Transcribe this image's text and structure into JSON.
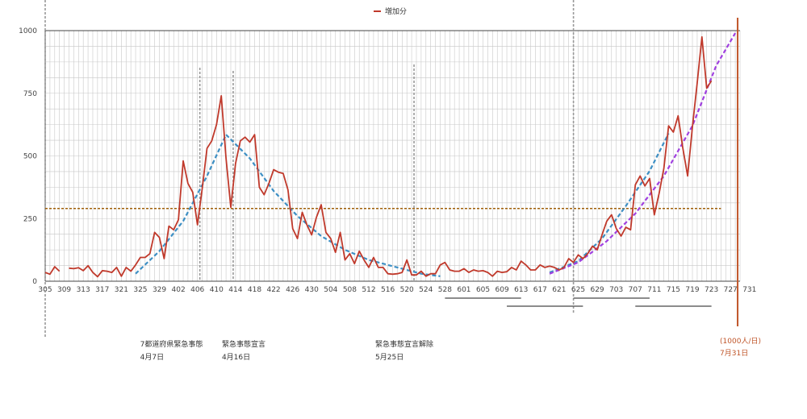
{
  "chart_data": {
    "type": "line",
    "title": "",
    "xlabel": "",
    "ylabel": "",
    "ylim": [
      0,
      1000
    ],
    "yticks": [
      "0",
      "250",
      "500",
      "750",
      "1000"
    ],
    "ytick_values": [
      0,
      250,
      500,
      750,
      1000
    ],
    "xtick_labels": [
      "305",
      "309",
      "313",
      "317",
      "321",
      "325",
      "329",
      "402",
      "406",
      "410",
      "414",
      "418",
      "422",
      "426",
      "430",
      "504",
      "508",
      "512",
      "516",
      "520",
      "524",
      "528",
      "601",
      "605",
      "609",
      "613",
      "617",
      "621",
      "625",
      "629",
      "703",
      "707",
      "711",
      "715",
      "719",
      "723",
      "727",
      "731"
    ],
    "grid": true,
    "legend": {
      "position": "top-center",
      "label": "増加分"
    },
    "colors": {
      "series": "#c0392b",
      "trend_blue": "#3d8fc4",
      "trend_purple": "#a040e0",
      "reference": "#a0600a",
      "event_line": "#999999",
      "target_line": "#c0562a"
    },
    "series": [
      {
        "name": "増加分",
        "segments": [
          [
            [
              0,
              35
            ],
            [
              1,
              28
            ],
            [
              2,
              58
            ],
            [
              3,
              40
            ]
          ],
          [
            [
              5,
              52
            ],
            [
              6,
              50
            ],
            [
              7,
              54
            ],
            [
              8,
              42
            ],
            [
              9,
              62
            ],
            [
              10,
              35
            ],
            [
              11,
              18
            ],
            [
              12,
              42
            ],
            [
              13,
              40
            ],
            [
              14,
              35
            ],
            [
              15,
              55
            ],
            [
              16,
              20
            ],
            [
              17,
              55
            ],
            [
              18,
              40
            ],
            [
              19,
              65
            ],
            [
              20,
              95
            ],
            [
              21,
              95
            ],
            [
              22,
              110
            ],
            [
              23,
              195
            ],
            [
              24,
              175
            ],
            [
              25,
              90
            ],
            [
              26,
              220
            ],
            [
              27,
              205
            ],
            [
              28,
              245
            ],
            [
              29,
              480
            ],
            [
              30,
              390
            ],
            [
              31,
              355
            ],
            [
              32,
              225
            ],
            [
              33,
              370
            ],
            [
              34,
              530
            ],
            [
              35,
              560
            ],
            [
              36,
              625
            ],
            [
              37,
              740
            ],
            [
              38,
              490
            ],
            [
              39,
              295
            ],
            [
              40,
              470
            ],
            [
              41,
              560
            ],
            [
              42,
              575
            ],
            [
              43,
              555
            ],
            [
              44,
              585
            ],
            [
              45,
              375
            ],
            [
              46,
              345
            ],
            [
              47,
              390
            ],
            [
              48,
              445
            ],
            [
              49,
              435
            ],
            [
              50,
              430
            ],
            [
              51,
              365
            ],
            [
              52,
              210
            ],
            [
              53,
              170
            ],
            [
              54,
              275
            ],
            [
              55,
              225
            ],
            [
              56,
              185
            ],
            [
              57,
              255
            ],
            [
              58,
              305
            ],
            [
              59,
              195
            ],
            [
              60,
              170
            ],
            [
              61,
              115
            ],
            [
              62,
              195
            ],
            [
              63,
              85
            ],
            [
              64,
              110
            ],
            [
              65,
              70
            ],
            [
              66,
              120
            ],
            [
              67,
              85
            ],
            [
              68,
              55
            ],
            [
              69,
              95
            ],
            [
              70,
              55
            ],
            [
              71,
              55
            ],
            [
              72,
              30
            ],
            [
              73,
              28
            ],
            [
              74,
              30
            ],
            [
              75,
              35
            ],
            [
              76,
              85
            ],
            [
              77,
              25
            ],
            [
              78,
              25
            ],
            [
              79,
              40
            ],
            [
              80,
              20
            ],
            [
              81,
              30
            ],
            [
              82,
              30
            ],
            [
              83,
              65
            ],
            [
              84,
              75
            ],
            [
              85,
              45
            ],
            [
              86,
              40
            ],
            [
              87,
              40
            ],
            [
              88,
              50
            ],
            [
              89,
              35
            ],
            [
              90,
              45
            ],
            [
              91,
              40
            ],
            [
              92,
              42
            ],
            [
              93,
              35
            ],
            [
              94,
              20
            ],
            [
              95,
              40
            ],
            [
              96,
              35
            ],
            [
              97,
              38
            ],
            [
              98,
              55
            ],
            [
              99,
              45
            ],
            [
              100,
              80
            ],
            [
              101,
              65
            ],
            [
              102,
              45
            ],
            [
              103,
              45
            ],
            [
              104,
              65
            ],
            [
              105,
              55
            ],
            [
              106,
              60
            ],
            [
              107,
              55
            ],
            [
              108,
              45
            ],
            [
              109,
              55
            ],
            [
              110,
              90
            ],
            [
              111,
              75
            ],
            [
              112,
              105
            ],
            [
              113,
              90
            ],
            [
              114,
              110
            ],
            [
              115,
              140
            ],
            [
              116,
              125
            ],
            [
              117,
              185
            ],
            [
              118,
              240
            ],
            [
              119,
              265
            ],
            [
              120,
              210
            ],
            [
              121,
              180
            ],
            [
              122,
              215
            ],
            [
              123,
              205
            ],
            [
              124,
              385
            ],
            [
              125,
              420
            ],
            [
              126,
              380
            ],
            [
              127,
              410
            ],
            [
              128,
              265
            ],
            [
              129,
              350
            ],
            [
              130,
              450
            ],
            [
              131,
              620
            ],
            [
              132,
              595
            ],
            [
              133,
              660
            ],
            [
              134,
              530
            ],
            [
              135,
              420
            ],
            [
              136,
              615
            ],
            [
              137,
              790
            ],
            [
              138,
              975
            ],
            [
              139,
              770
            ],
            [
              140,
              800
            ]
          ]
        ]
      }
    ],
    "trend_lines": [
      {
        "style": "dashed",
        "color": "#3d8fc4",
        "points": [
          [
            19,
            30
          ],
          [
            24,
            120
          ],
          [
            29,
            240
          ],
          [
            34,
            420
          ],
          [
            38,
            585
          ],
          [
            43,
            490
          ],
          [
            48,
            360
          ],
          [
            53,
            260
          ],
          [
            58,
            180
          ],
          [
            63,
            125
          ],
          [
            68,
            85
          ],
          [
            74,
            55
          ],
          [
            79,
            30
          ],
          [
            83,
            20
          ]
        ]
      },
      {
        "style": "dashed",
        "color": "#3d8fc4",
        "points": [
          [
            106,
            35
          ],
          [
            112,
            80
          ],
          [
            117,
            170
          ],
          [
            122,
            300
          ],
          [
            127,
            440
          ],
          [
            131,
            590
          ]
        ]
      },
      {
        "style": "dashed",
        "color": "#a040e0",
        "points": [
          [
            106,
            30
          ],
          [
            112,
            75
          ],
          [
            118,
            160
          ],
          [
            124,
            270
          ],
          [
            130,
            420
          ],
          [
            136,
            620
          ],
          [
            141,
            860
          ],
          [
            145,
            990
          ]
        ]
      }
    ],
    "reference_line": {
      "style": "dashed",
      "value": 290,
      "color": "#a0600a",
      "x_range": [
        0,
        142
      ]
    },
    "event_lines": [
      {
        "x": 0,
        "label": "",
        "date": ""
      },
      {
        "x": 32.5,
        "label": "7都道府県緊急事態",
        "date": "4月7日"
      },
      {
        "x": 39.5,
        "label": "緊急事態宣言",
        "date": "4月16日"
      },
      {
        "x": 77.5,
        "label": "緊急事態宣言解除",
        "date": "5月25日"
      },
      {
        "x": 111,
        "label": "",
        "date": ""
      }
    ],
    "period_bars": [
      {
        "from": 84,
        "to": 100,
        "row": 0
      },
      {
        "from": 97,
        "to": 113,
        "row": 1
      },
      {
        "from": 111,
        "to": 127,
        "row": 0
      },
      {
        "from": 124,
        "to": 140,
        "row": 1
      }
    ],
    "target_annotation": {
      "x": 145.5,
      "value_label": "(1000人/日)",
      "date_label": "7月31日"
    }
  }
}
